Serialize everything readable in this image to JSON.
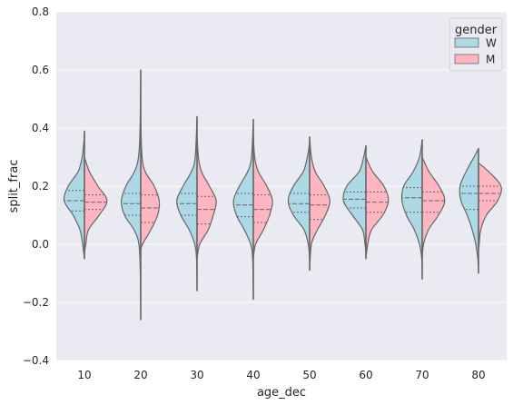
{
  "chart_data": {
    "type": "violin",
    "split": true,
    "inner": "quartile",
    "title": "",
    "xlabel": "age_dec",
    "ylabel": "split_frac",
    "ylim": [
      -0.4,
      0.8
    ],
    "yticks": [
      -0.4,
      -0.2,
      0.0,
      0.2,
      0.4,
      0.6,
      0.8
    ],
    "ytick_labels": [
      "−0.4",
      "−0.2",
      "0.0",
      "0.2",
      "0.4",
      "0.6",
      "0.8"
    ],
    "categories": [
      "10",
      "20",
      "30",
      "40",
      "50",
      "60",
      "70",
      "80"
    ],
    "grid": true,
    "legend": {
      "title": "gender",
      "placement": "top-right"
    },
    "series": [
      {
        "name": "W",
        "color": "#add8e6",
        "violins": [
          {
            "min": -0.05,
            "max": 0.39,
            "q1": 0.115,
            "median": 0.15,
            "q3": 0.185,
            "profile": [
              [
                -0.05,
                0.0
              ],
              [
                0.0,
                0.08
              ],
              [
                0.05,
                0.2
              ],
              [
                0.1,
                0.5
              ],
              [
                0.15,
                0.9
              ],
              [
                0.2,
                0.72
              ],
              [
                0.25,
                0.28
              ],
              [
                0.3,
                0.1
              ],
              [
                0.35,
                0.03
              ],
              [
                0.39,
                0.0
              ]
            ]
          },
          {
            "min": -0.26,
            "max": 0.6,
            "q1": 0.1,
            "median": 0.14,
            "q3": 0.175,
            "profile": [
              [
                -0.26,
                0.0
              ],
              [
                -0.1,
                0.02
              ],
              [
                0.0,
                0.08
              ],
              [
                0.05,
                0.3
              ],
              [
                0.1,
                0.72
              ],
              [
                0.15,
                0.86
              ],
              [
                0.2,
                0.66
              ],
              [
                0.25,
                0.28
              ],
              [
                0.3,
                0.1
              ],
              [
                0.4,
                0.03
              ],
              [
                0.6,
                0.0
              ]
            ]
          },
          {
            "min": -0.16,
            "max": 0.44,
            "q1": 0.1,
            "median": 0.14,
            "q3": 0.175,
            "profile": [
              [
                -0.16,
                0.0
              ],
              [
                -0.05,
                0.02
              ],
              [
                0.0,
                0.1
              ],
              [
                0.05,
                0.35
              ],
              [
                0.1,
                0.72
              ],
              [
                0.15,
                0.9
              ],
              [
                0.2,
                0.62
              ],
              [
                0.25,
                0.25
              ],
              [
                0.3,
                0.08
              ],
              [
                0.44,
                0.0
              ]
            ]
          },
          {
            "min": -0.19,
            "max": 0.43,
            "q1": 0.095,
            "median": 0.135,
            "q3": 0.175,
            "profile": [
              [
                -0.19,
                0.0
              ],
              [
                -0.05,
                0.03
              ],
              [
                0.0,
                0.12
              ],
              [
                0.05,
                0.4
              ],
              [
                0.1,
                0.75
              ],
              [
                0.15,
                0.88
              ],
              [
                0.2,
                0.62
              ],
              [
                0.25,
                0.25
              ],
              [
                0.3,
                0.08
              ],
              [
                0.43,
                0.0
              ]
            ]
          },
          {
            "min": -0.05,
            "max": 0.35,
            "q1": 0.11,
            "median": 0.14,
            "q3": 0.175,
            "profile": [
              [
                -0.05,
                0.0
              ],
              [
                0.0,
                0.06
              ],
              [
                0.05,
                0.25
              ],
              [
                0.1,
                0.72
              ],
              [
                0.15,
                0.95
              ],
              [
                0.2,
                0.72
              ],
              [
                0.25,
                0.28
              ],
              [
                0.3,
                0.1
              ],
              [
                0.35,
                0.0
              ]
            ]
          },
          {
            "min": -0.03,
            "max": 0.34,
            "q1": 0.125,
            "median": 0.155,
            "q3": 0.18,
            "profile": [
              [
                -0.03,
                0.0
              ],
              [
                0.0,
                0.04
              ],
              [
                0.05,
                0.15
              ],
              [
                0.1,
                0.6
              ],
              [
                0.15,
                1.0
              ],
              [
                0.2,
                0.85
              ],
              [
                0.25,
                0.3
              ],
              [
                0.3,
                0.1
              ],
              [
                0.34,
                0.0
              ]
            ]
          },
          {
            "min": -0.12,
            "max": 0.36,
            "q1": 0.11,
            "median": 0.16,
            "q3": 0.195,
            "profile": [
              [
                -0.12,
                0.0
              ],
              [
                -0.05,
                0.02
              ],
              [
                0.0,
                0.12
              ],
              [
                0.05,
                0.35
              ],
              [
                0.1,
                0.7
              ],
              [
                0.15,
                0.9
              ],
              [
                0.2,
                0.82
              ],
              [
                0.25,
                0.4
              ],
              [
                0.3,
                0.12
              ],
              [
                0.36,
                0.0
              ]
            ]
          },
          {
            "min": -0.1,
            "max": 0.33,
            "q1": 0.12,
            "median": 0.175,
            "q3": 0.2,
            "profile": [
              [
                -0.1,
                0.0
              ],
              [
                -0.05,
                0.03
              ],
              [
                0.0,
                0.12
              ],
              [
                0.05,
                0.28
              ],
              [
                0.1,
                0.5
              ],
              [
                0.15,
                0.78
              ],
              [
                0.2,
                0.82
              ],
              [
                0.25,
                0.55
              ],
              [
                0.3,
                0.2
              ],
              [
                0.33,
                0.0
              ]
            ]
          }
        ]
      },
      {
        "name": "M",
        "color": "#ffb6c1",
        "violins": [
          {
            "min": -0.03,
            "max": 0.3,
            "q1": 0.12,
            "median": 0.145,
            "q3": 0.17,
            "profile": [
              [
                -0.03,
                0.0
              ],
              [
                0.0,
                0.06
              ],
              [
                0.05,
                0.18
              ],
              [
                0.1,
                0.65
              ],
              [
                0.15,
                1.0
              ],
              [
                0.2,
                0.6
              ],
              [
                0.25,
                0.22
              ],
              [
                0.3,
                0.0
              ]
            ]
          },
          {
            "min": -0.02,
            "max": 0.42,
            "q1": 0.075,
            "median": 0.125,
            "q3": 0.17,
            "profile": [
              [
                -0.02,
                0.0
              ],
              [
                0.0,
                0.08
              ],
              [
                0.05,
                0.45
              ],
              [
                0.1,
                0.75
              ],
              [
                0.15,
                0.82
              ],
              [
                0.2,
                0.6
              ],
              [
                0.25,
                0.2
              ],
              [
                0.3,
                0.06
              ],
              [
                0.42,
                0.0
              ]
            ]
          },
          {
            "min": -0.05,
            "max": 0.38,
            "q1": 0.07,
            "median": 0.12,
            "q3": 0.165,
            "profile": [
              [
                -0.05,
                0.0
              ],
              [
                0.0,
                0.12
              ],
              [
                0.05,
                0.5
              ],
              [
                0.1,
                0.72
              ],
              [
                0.15,
                0.85
              ],
              [
                0.2,
                0.55
              ],
              [
                0.25,
                0.2
              ],
              [
                0.3,
                0.06
              ],
              [
                0.38,
                0.0
              ]
            ]
          },
          {
            "min": -0.05,
            "max": 0.38,
            "q1": 0.075,
            "median": 0.12,
            "q3": 0.17,
            "profile": [
              [
                -0.05,
                0.0
              ],
              [
                0.0,
                0.1
              ],
              [
                0.05,
                0.45
              ],
              [
                0.1,
                0.72
              ],
              [
                0.15,
                0.85
              ],
              [
                0.2,
                0.6
              ],
              [
                0.25,
                0.22
              ],
              [
                0.3,
                0.06
              ],
              [
                0.38,
                0.0
              ]
            ]
          },
          {
            "min": -0.09,
            "max": 0.37,
            "q1": 0.085,
            "median": 0.135,
            "q3": 0.17,
            "profile": [
              [
                -0.09,
                0.0
              ],
              [
                0.0,
                0.08
              ],
              [
                0.05,
                0.35
              ],
              [
                0.1,
                0.7
              ],
              [
                0.15,
                0.9
              ],
              [
                0.2,
                0.65
              ],
              [
                0.25,
                0.25
              ],
              [
                0.3,
                0.08
              ],
              [
                0.37,
                0.0
              ]
            ]
          },
          {
            "min": -0.05,
            "max": 0.3,
            "q1": 0.11,
            "median": 0.145,
            "q3": 0.18,
            "profile": [
              [
                -0.05,
                0.0
              ],
              [
                0.0,
                0.08
              ],
              [
                0.05,
                0.25
              ],
              [
                0.1,
                0.75
              ],
              [
                0.15,
                1.0
              ],
              [
                0.2,
                0.8
              ],
              [
                0.25,
                0.3
              ],
              [
                0.3,
                0.0
              ]
            ]
          },
          {
            "min": -0.05,
            "max": 0.3,
            "q1": 0.11,
            "median": 0.15,
            "q3": 0.18,
            "profile": [
              [
                -0.05,
                0.0
              ],
              [
                0.0,
                0.06
              ],
              [
                0.05,
                0.28
              ],
              [
                0.1,
                0.72
              ],
              [
                0.15,
                1.0
              ],
              [
                0.2,
                0.75
              ],
              [
                0.25,
                0.3
              ],
              [
                0.3,
                0.0
              ]
            ]
          },
          {
            "min": -0.02,
            "max": 0.28,
            "q1": 0.15,
            "median": 0.175,
            "q3": 0.2,
            "profile": [
              [
                -0.02,
                0.0
              ],
              [
                0.0,
                0.03
              ],
              [
                0.05,
                0.1
              ],
              [
                0.1,
                0.35
              ],
              [
                0.15,
                0.85
              ],
              [
                0.2,
                1.0
              ],
              [
                0.25,
                0.45
              ],
              [
                0.28,
                0.0
              ]
            ]
          }
        ]
      }
    ]
  }
}
